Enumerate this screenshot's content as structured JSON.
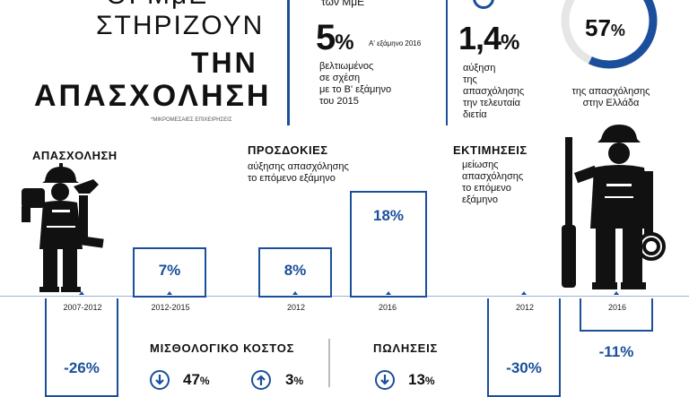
{
  "header": {
    "line_top": "ΟΙ ΜμΕ",
    "line1": "ΣΤΗΡΙΖΟΥΝ",
    "line2": "ΤΗΝ",
    "line3": "ΑΠΑΣΧΟΛΗΣΗ",
    "footnote": "*ΜΙΚΡΟΜΕΣΑΙΕΣ ΕΠΙΧΕΙΡΗΣΕΙΣ"
  },
  "stat1": {
    "top_text": "των ΜμΕ",
    "value": "5",
    "unit": "%",
    "period": "Α' εξάμηνο 2016",
    "desc": [
      "βελτιωμένος",
      "σε σχέση",
      "με το Β' εξάμηνο",
      "του 2015"
    ]
  },
  "stat2": {
    "value": "1,4",
    "unit": "%",
    "desc": [
      "αύξηση",
      "της",
      "απασχόλησης",
      "την τελευταία",
      "διετία"
    ]
  },
  "stat3": {
    "value": "57",
    "unit": "%",
    "share": 0.57,
    "desc": [
      "της απασχόλησης",
      "στην Ελλάδα"
    ]
  },
  "employment": {
    "title": "ΑΠΑΣΧΟΛΗΣΗ",
    "period_a": "2007-2012",
    "period_b": "2012-2015",
    "value_a": "-26%",
    "value_b": "7%"
  },
  "expectations": {
    "title": "ΠΡΟΣΔΟΚΙΕΣ",
    "subtitle": [
      "αύξησης απασχόλησης",
      "το επόμενο εξάμηνο"
    ],
    "year_a": "2012",
    "year_b": "2016",
    "value_a": "8%",
    "value_b": "18%"
  },
  "estimates": {
    "title": "ΕΚΤΙΜΗΣΕΙΣ",
    "subtitle": [
      "μείωσης",
      "απασχόλησης",
      "το επόμενο",
      "εξάμηνο"
    ],
    "year_a": "2012",
    "year_b": "2016",
    "value_a": "-30%",
    "value_b": "-11%"
  },
  "wage_cost": {
    "title": "ΜΙΣΘΟΛΟΓΙΚΟ ΚΟΣΤΟΣ",
    "down_value": "47",
    "up_value": "3",
    "unit": "%"
  },
  "sales": {
    "title": "ΠΩΛΗΣΕΙΣ",
    "down_value": "13",
    "unit": "%"
  },
  "icons": {
    "worker_left": "construction-worker-icon",
    "worker_right": "mechanic-worker-icon",
    "down_arrow": "down-arrow-circle-icon",
    "up_arrow": "up-arrow-circle-icon"
  },
  "colors": {
    "accent": "#1b4f9c",
    "text": "#111111"
  }
}
